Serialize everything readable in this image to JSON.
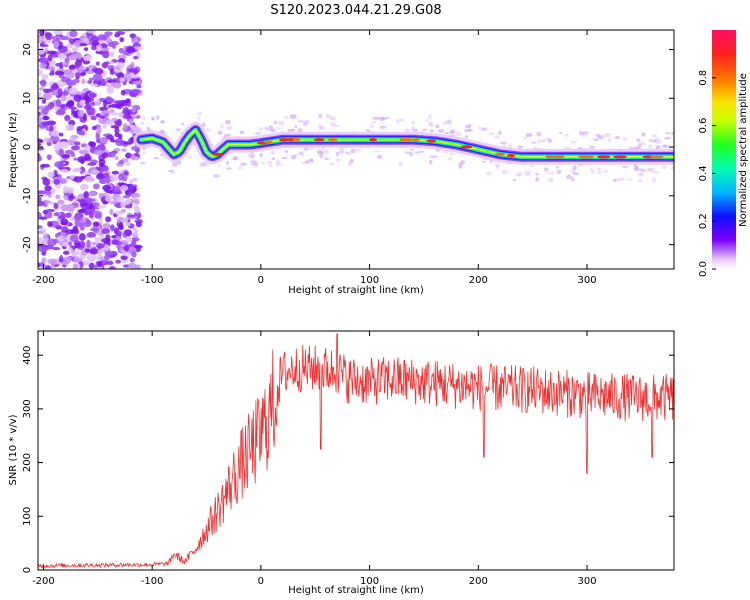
{
  "title": "S120.2023.044.21.29.G08",
  "chart_data": [
    {
      "type": "heatmap",
      "xlabel": "Height of straight line (km)",
      "ylabel": "Frequency (Hz)",
      "xlim": [
        -205,
        380
      ],
      "ylim": [
        -25,
        24
      ],
      "xticks": [
        -200,
        -100,
        0,
        100,
        200,
        300
      ],
      "yticks": [
        -20,
        -10,
        0,
        10,
        20
      ],
      "colorbar": {
        "label": "Normalized spectral amplitude",
        "range": [
          0,
          1
        ],
        "ticks": [
          "0.0",
          "0.2",
          "0.4",
          "0.6",
          "0.8"
        ]
      },
      "ridge": {
        "x": [
          -110,
          -100,
          -90,
          -80,
          -75,
          -70,
          -65,
          -60,
          -55,
          -50,
          -45,
          -40,
          -35,
          -30,
          -20,
          -10,
          0,
          20,
          40,
          60,
          80,
          100,
          120,
          140,
          160,
          180,
          200,
          220,
          240,
          260,
          280,
          300,
          320,
          340,
          360,
          380
        ],
        "y": [
          1.5,
          1.8,
          1.0,
          -1.5,
          -1.0,
          1.0,
          2.5,
          3.5,
          1.5,
          -1.0,
          -2.0,
          -1.5,
          -0.5,
          0.5,
          0.5,
          0.5,
          0.8,
          1.5,
          1.5,
          1.5,
          1.5,
          1.5,
          1.5,
          1.5,
          1.2,
          0.5,
          -0.5,
          -1.5,
          -2.0,
          -2.0,
          -2.0,
          -2.0,
          -2.0,
          -2.0,
          -2.0,
          -2.0
        ]
      }
    },
    {
      "type": "line",
      "xlabel": "Height of straight line (km)",
      "ylabel": "SNR (10 * v/v)",
      "xlim": [
        -205,
        380
      ],
      "ylim": [
        0,
        445
      ],
      "xticks": [
        -200,
        -100,
        0,
        100,
        200,
        300
      ],
      "yticks": [
        0,
        100,
        200,
        300,
        400
      ],
      "color": "#f03030",
      "envelope": {
        "x": [
          -205,
          -100,
          -85,
          -80,
          -70,
          -60,
          -50,
          -40,
          -30,
          -20,
          -10,
          0,
          10,
          15,
          20,
          30,
          50,
          70,
          80,
          100,
          120,
          150,
          200,
          250,
          300,
          350,
          380
        ],
        "y": [
          8,
          10,
          12,
          30,
          15,
          40,
          75,
          110,
          150,
          190,
          220,
          250,
          300,
          340,
          365,
          375,
          375,
          370,
          355,
          350,
          355,
          350,
          340,
          335,
          325,
          320,
          320
        ]
      },
      "spikes": [
        {
          "x": 70,
          "y": 440
        },
        {
          "x": 55,
          "y": 225
        },
        {
          "x": 205,
          "y": 210
        },
        {
          "x": 300,
          "y": 180
        },
        {
          "x": 360,
          "y": 210
        }
      ]
    }
  ]
}
